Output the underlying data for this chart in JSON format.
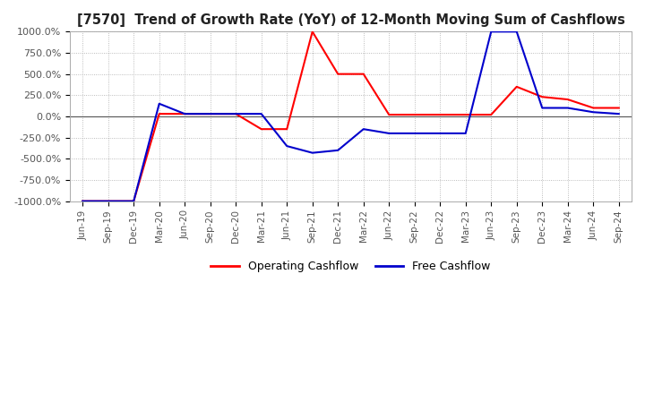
{
  "title": "[7570]  Trend of Growth Rate (YoY) of 12-Month Moving Sum of Cashflows",
  "title_fontsize": 10.5,
  "ylim": [
    -1000,
    1000
  ],
  "yticks": [
    -1000,
    -750,
    -500,
    -250,
    0,
    250,
    500,
    750,
    1000
  ],
  "ytick_labels": [
    "-1000.0%",
    "-750.0%",
    "-500.0%",
    "-250.0%",
    "0.0%",
    "250.0%",
    "500.0%",
    "750.0%",
    "1000.0%"
  ],
  "background_color": "#ffffff",
  "grid_color": "#aaaaaa",
  "operating_color": "#ff0000",
  "free_color": "#0000cc",
  "legend_labels": [
    "Operating Cashflow",
    "Free Cashflow"
  ],
  "x_dates": [
    "Jun-19",
    "Sep-19",
    "Dec-19",
    "Mar-20",
    "Jun-20",
    "Sep-20",
    "Dec-20",
    "Mar-21",
    "Jun-21",
    "Sep-21",
    "Dec-21",
    "Mar-22",
    "Jun-22",
    "Sep-22",
    "Dec-22",
    "Mar-23",
    "Jun-23",
    "Sep-23",
    "Dec-23",
    "Mar-24",
    "Jun-24",
    "Sep-24"
  ],
  "operating_cashflow": [
    -1000,
    -1000,
    -1000,
    30,
    30,
    30,
    30,
    -150,
    -150,
    1000,
    500,
    500,
    20,
    20,
    20,
    20,
    20,
    350,
    230,
    200,
    100,
    100
  ],
  "free_cashflow": [
    -1000,
    -1000,
    -1000,
    150,
    30,
    30,
    30,
    30,
    -350,
    -430,
    -400,
    -150,
    -200,
    -200,
    -200,
    -200,
    1000,
    1000,
    100,
    100,
    50,
    30
  ]
}
